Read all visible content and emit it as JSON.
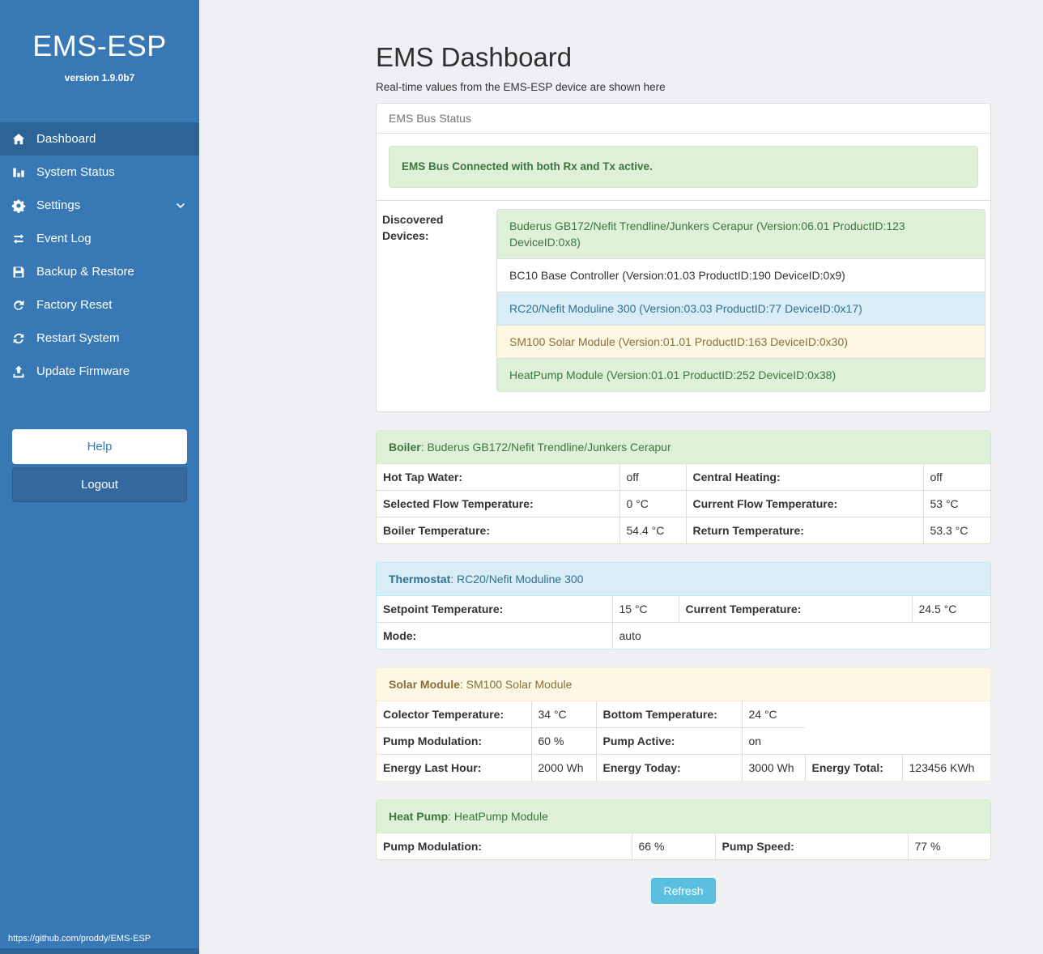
{
  "sidebar": {
    "brand": "EMS-ESP",
    "version": "version 1.9.0b7",
    "nav": [
      {
        "label": "Dashboard",
        "icon": "home-icon",
        "active": true
      },
      {
        "label": "System Status",
        "icon": "status-bars-icon"
      },
      {
        "label": "Settings",
        "icon": "gear-icon",
        "chevron": true
      },
      {
        "label": "Event Log",
        "icon": "exchange-icon"
      },
      {
        "label": "Backup & Restore",
        "icon": "save-icon"
      },
      {
        "label": "Factory Reset",
        "icon": "rotate-icon"
      },
      {
        "label": "Restart System",
        "icon": "sync-icon"
      },
      {
        "label": "Update Firmware",
        "icon": "upload-icon"
      }
    ],
    "help_label": "Help",
    "logout_label": "Logout",
    "footer_link": "https://github.com/proddy/EMS-ESP"
  },
  "header": {
    "title": "EMS Dashboard",
    "subtitle": "Real-time values from the EMS-ESP device are shown here"
  },
  "bus_status": {
    "panel_title": "EMS Bus Status",
    "alert": "EMS Bus Connected with both Rx and Tx active.",
    "devices_label": "Discovered Devices:",
    "devices": [
      {
        "text": "Buderus GB172/Nefit Trendline/Junkers Cerapur (Version:06.01 ProductID:123 DeviceID:0x8)",
        "variant": "success"
      },
      {
        "text": "BC10 Base Controller (Version:01.03 ProductID:190 DeviceID:0x9)",
        "variant": "default"
      },
      {
        "text": "RC20/Nefit Moduline 300 (Version:03.03 ProductID:77 DeviceID:0x17)",
        "variant": "info"
      },
      {
        "text": "SM100 Solar Module (Version:01.01 ProductID:163 DeviceID:0x30)",
        "variant": "warning"
      },
      {
        "text": "HeatPump Module (Version:01.01 ProductID:252 DeviceID:0x38)",
        "variant": "success"
      }
    ]
  },
  "device_panels": [
    {
      "name": "Boiler",
      "device": "Buderus GB172/Nefit Trendline/Junkers Cerapur",
      "variant": "success",
      "cols": [
        300,
        82,
        293,
        85
      ],
      "rows": [
        [
          {
            "t": "Hot Tap Water:",
            "b": true
          },
          {
            "t": "off"
          },
          {
            "t": "Central Heating:",
            "b": true
          },
          {
            "t": "off"
          }
        ],
        [
          {
            "t": "Selected Flow Temperature:",
            "b": true
          },
          {
            "t": "0 °C"
          },
          {
            "t": "Current Flow Temperature:",
            "b": true
          },
          {
            "t": "53 °C"
          }
        ],
        [
          {
            "t": "Boiler Temperature:",
            "b": true
          },
          {
            "t": "54.4 °C"
          },
          {
            "t": "Return Temperature:",
            "b": true
          },
          {
            "t": "53.3 °C"
          }
        ]
      ]
    },
    {
      "name": "Thermostat",
      "device": "RC20/Nefit Moduline 300",
      "variant": "info",
      "cols": [
        291,
        82,
        288,
        99
      ],
      "rows": [
        [
          {
            "t": "Setpoint Temperature:",
            "b": true
          },
          {
            "t": "15 °C"
          },
          {
            "t": "Current Temperature:",
            "b": true
          },
          {
            "t": "24.5 °C"
          }
        ],
        [
          {
            "t": "Mode:",
            "b": true
          },
          {
            "t": "auto",
            "span": 3
          }
        ]
      ]
    },
    {
      "name": "Solar Module",
      "device": "SM100 Solar Module",
      "variant": "warning",
      "cols": [
        191,
        80,
        180,
        78,
        120,
        111
      ],
      "rows": [
        [
          {
            "t": "Colector Temperature:",
            "b": true
          },
          {
            "t": "34 °C"
          },
          {
            "t": "Bottom Temperature:",
            "b": true
          },
          {
            "t": "24 °C"
          }
        ],
        [
          {
            "t": "Pump Modulation:",
            "b": true
          },
          {
            "t": "60 %"
          },
          {
            "t": "Pump Active:",
            "b": true
          },
          {
            "t": "on"
          }
        ],
        [
          {
            "t": "Energy Last Hour:",
            "b": true
          },
          {
            "t": "2000 Wh"
          },
          {
            "t": "Energy Today:",
            "b": true
          },
          {
            "t": "3000 Wh"
          },
          {
            "t": "Energy Total:",
            "b": true
          },
          {
            "t": "123456 KWh"
          }
        ]
      ]
    },
    {
      "name": "Heat Pump",
      "device": "HeatPump Module",
      "variant": "success",
      "cols": [
        315,
        103,
        238,
        104
      ],
      "rows": [
        [
          {
            "t": "Pump Modulation:",
            "b": true
          },
          {
            "t": "66 %"
          },
          {
            "t": "Pump Speed:",
            "b": true
          },
          {
            "t": "77 %"
          }
        ]
      ]
    }
  ],
  "refresh_label": "Refresh",
  "colors": {
    "sidebar_bg": "#3878b4",
    "sidebar_active_bg": "#2d6498",
    "logout_bg": "#35689f",
    "help_text": "#337ab7",
    "main_bg": "#eef0f4",
    "panel_border": "#dddddd",
    "success_bg": "#dff0d8",
    "success_text": "#3c763d",
    "success_border": "#d6e9c6",
    "info_bg": "#d9edf7",
    "info_text": "#31708f",
    "info_border": "#bce8f1",
    "warning_bg": "#fcf8e3",
    "warning_text": "#8a6d3b",
    "warning_border": "#faebcc",
    "refresh_bg": "#5bc0de",
    "refresh_border": "#46b8da"
  }
}
